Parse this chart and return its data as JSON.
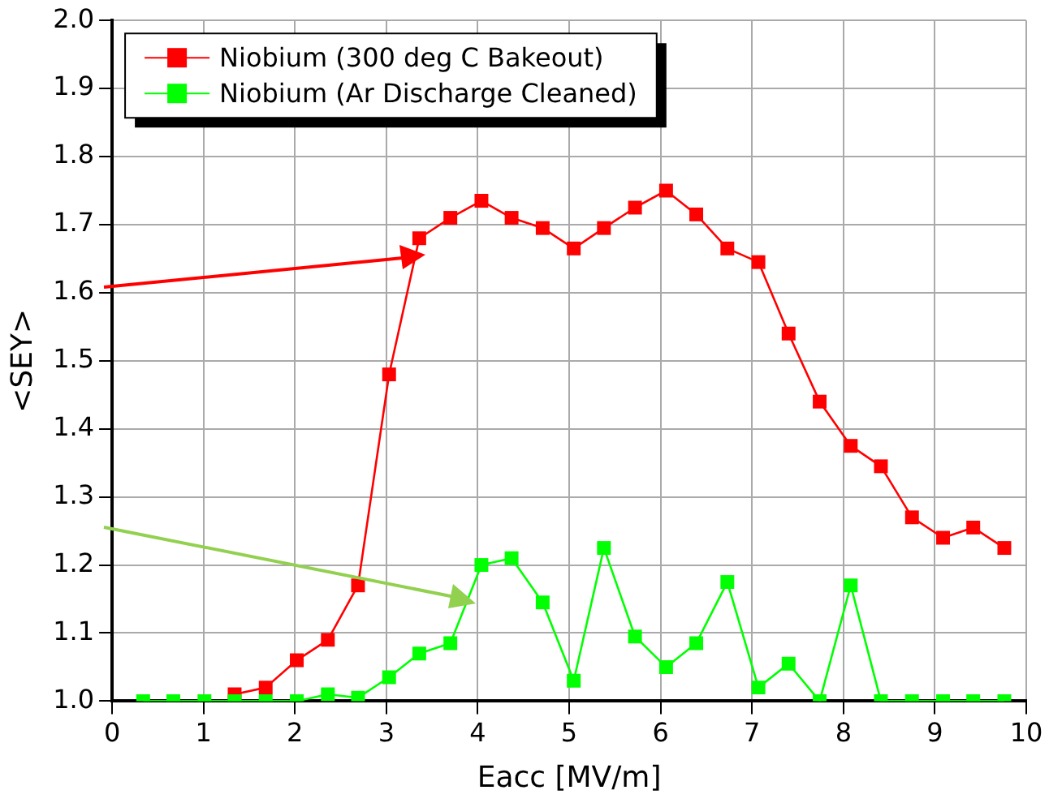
{
  "chart_data": {
    "type": "line",
    "xlabel": "Eacc [MV/m]",
    "ylabel": "<SEY>",
    "xlim": [
      0,
      10
    ],
    "xticks": [
      0,
      1,
      2,
      3,
      4,
      5,
      6,
      7,
      8,
      9,
      10
    ],
    "ylim": [
      1.0,
      2.0
    ],
    "yticks": [
      {
        "value": 1.0,
        "label": "1.0"
      },
      {
        "value": 1.1,
        "label": "1.1"
      },
      {
        "value": 1.2,
        "label": "1.2"
      },
      {
        "value": 1.3,
        "label": "1.3"
      },
      {
        "value": 1.4,
        "label": "1.4"
      },
      {
        "value": 1.5,
        "label": "1.5"
      },
      {
        "value": 1.6,
        "label": "1.6"
      },
      {
        "value": 1.7,
        "label": "1.7"
      },
      {
        "value": 1.8,
        "label": "1.8"
      },
      {
        "value": 1.9,
        "label": "1.9"
      },
      {
        "value": 2.0,
        "label": "2.0"
      }
    ],
    "grid": true,
    "legend": "top left",
    "marker": "square",
    "line_style": "solid",
    "series": [
      {
        "name": "Niobium (300 deg C Bakeout)",
        "color": "#ff0000",
        "x": [
          1.34,
          1.68,
          2.02,
          2.36,
          2.69,
          3.03,
          3.36,
          3.7,
          4.04,
          4.37,
          4.71,
          5.05,
          5.38,
          5.72,
          6.06,
          6.39,
          6.73,
          7.07,
          7.4,
          7.74,
          8.08,
          8.41,
          8.75,
          9.09,
          9.42,
          9.76
        ],
        "values": [
          1.01,
          1.02,
          1.06,
          1.09,
          1.17,
          1.48,
          1.68,
          1.71,
          1.735,
          1.71,
          1.695,
          1.665,
          1.695,
          1.725,
          1.75,
          1.715,
          1.665,
          1.645,
          1.54,
          1.44,
          1.375,
          1.345,
          1.27,
          1.24,
          1.255,
          1.225
        ]
      },
      {
        "name": "Niobium (Ar Discharge Cleaned)",
        "color": "#00ff00",
        "x": [
          0.34,
          0.67,
          1.01,
          1.34,
          1.68,
          2.02,
          2.36,
          2.69,
          3.03,
          3.36,
          3.7,
          4.04,
          4.37,
          4.71,
          5.05,
          5.38,
          5.72,
          6.06,
          6.39,
          6.73,
          7.07,
          7.4,
          7.74,
          8.08,
          8.41,
          8.75,
          9.09,
          9.42,
          9.76
        ],
        "values": [
          1.0,
          1.0,
          1.0,
          1.0,
          1.0,
          1.0,
          1.01,
          1.005,
          1.035,
          1.07,
          1.085,
          1.2,
          1.21,
          1.145,
          1.03,
          1.225,
          1.095,
          1.05,
          1.085,
          1.175,
          1.02,
          1.055,
          1.0,
          1.17,
          1.0,
          1.0,
          1.0,
          1.0,
          1.0
        ]
      }
    ]
  }
}
